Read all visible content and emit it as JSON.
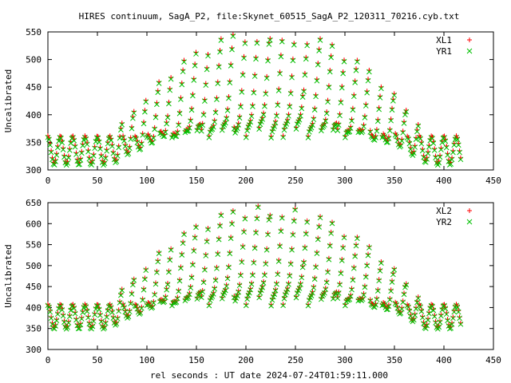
{
  "title": "HIRES continuum, SagA_P2, file:Skynet_60515_SagA_P2_120311_70216.cyb.txt",
  "xlabel": "rel seconds : UT date 2024-07-24T01:59:11.000",
  "colors": {
    "red": "#ff0000",
    "green": "#00c000",
    "axis": "#000000"
  },
  "chart_data": [
    {
      "type": "scatter",
      "ylabel": "Uncalibrated",
      "xlim": [
        0,
        450
      ],
      "ylim": [
        300,
        550
      ],
      "xticks": [
        "0",
        "50",
        "100",
        "150",
        "200",
        "250",
        "300",
        "350",
        "400",
        "450"
      ],
      "yticks": [
        "300",
        "350",
        "400",
        "450",
        "500",
        "550"
      ],
      "legend_position": "top-right",
      "grid": false,
      "trace_model": {
        "t_range": [
          0,
          418
        ],
        "base_level": 337,
        "base_wiggle_amp": 25,
        "base_wiggle_period_s": 12.5,
        "dome_peak_x": 225,
        "dome_half_width": 160,
        "dome_amplitude": 195
      },
      "series": [
        {
          "name": "XL1",
          "marker": "plus",
          "color": "#ff0000"
        },
        {
          "name": "YR1",
          "marker": "x",
          "color": "#00c000"
        }
      ]
    },
    {
      "type": "scatter",
      "ylabel": "Uncalibrated",
      "xlim": [
        0,
        450
      ],
      "ylim": [
        300,
        650
      ],
      "xticks": [
        "0",
        "50",
        "100",
        "150",
        "200",
        "250",
        "300",
        "350",
        "400",
        "450"
      ],
      "yticks": [
        "300",
        "350",
        "400",
        "450",
        "500",
        "550",
        "600",
        "650"
      ],
      "legend_position": "top-right",
      "grid": false,
      "trace_model": {
        "t_range": [
          0,
          418
        ],
        "base_level": 380,
        "base_wiggle_amp": 28,
        "base_wiggle_period_s": 12.5,
        "dome_peak_x": 222,
        "dome_half_width": 160,
        "dome_amplitude": 235
      },
      "series": [
        {
          "name": "XL2",
          "marker": "plus",
          "color": "#ff0000"
        },
        {
          "name": "YR2",
          "marker": "x",
          "color": "#00c000"
        }
      ]
    }
  ]
}
